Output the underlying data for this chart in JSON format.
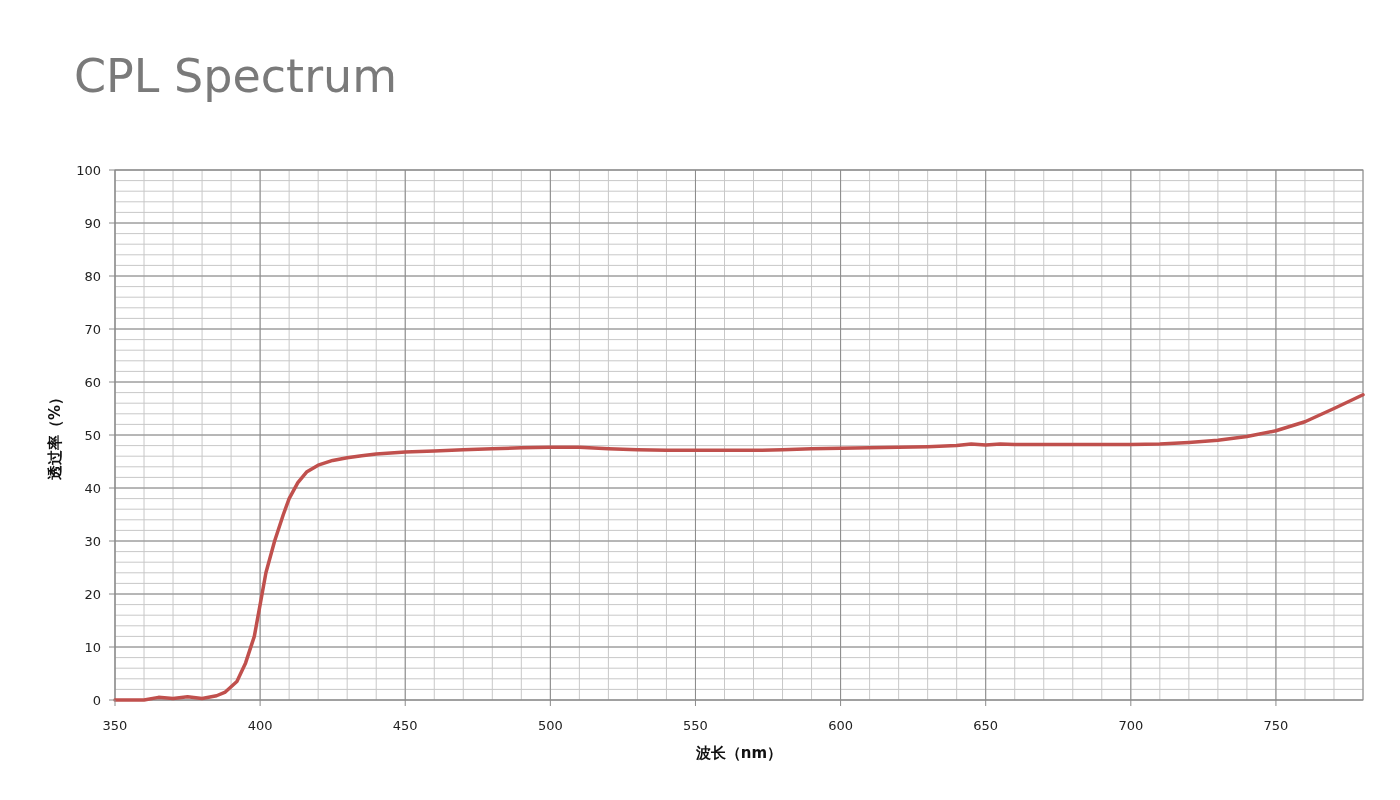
{
  "chart_data": {
    "type": "line",
    "title": "CPL Spectrum",
    "xlabel": "波长（nm）",
    "ylabel": "透过率（%）",
    "x": [
      350,
      355,
      360,
      365,
      370,
      375,
      380,
      385,
      388,
      392,
      395,
      398,
      400,
      402,
      405,
      408,
      410,
      413,
      416,
      420,
      425,
      430,
      435,
      440,
      450,
      460,
      470,
      480,
      490,
      500,
      510,
      520,
      530,
      540,
      550,
      560,
      570,
      580,
      590,
      600,
      610,
      620,
      630,
      640,
      645,
      650,
      655,
      660,
      680,
      700,
      710,
      720,
      730,
      740,
      750,
      760,
      770,
      780
    ],
    "series": [
      {
        "color": "#c0504d",
        "values": [
          0,
          0,
          0,
          0.5,
          0.3,
          0.6,
          0.3,
          0.8,
          1.5,
          3.5,
          7,
          12,
          18,
          24,
          30,
          35,
          38,
          41,
          43,
          44.3,
          45.2,
          45.7,
          46.1,
          46.4,
          46.8,
          47,
          47.2,
          47.4,
          47.6,
          47.7,
          47.7,
          47.4,
          47.2,
          47.1,
          47.1,
          47.1,
          47.1,
          47.2,
          47.4,
          47.5,
          47.6,
          47.7,
          47.8,
          48,
          48.3,
          48.1,
          48.3,
          48.2,
          48.2,
          48.2,
          48.3,
          48.6,
          49,
          49.7,
          50.8,
          52.5,
          55,
          57.6
        ]
      }
    ],
    "xlim": [
      350,
      780
    ],
    "xticks": [
      350,
      400,
      450,
      500,
      550,
      600,
      650,
      700,
      750
    ],
    "ylim": [
      0,
      100
    ],
    "yticks": [
      0,
      10,
      20,
      30,
      40,
      50,
      60,
      70,
      80,
      90,
      100
    ],
    "grid": true,
    "marker": "none",
    "line_style": "solid"
  }
}
